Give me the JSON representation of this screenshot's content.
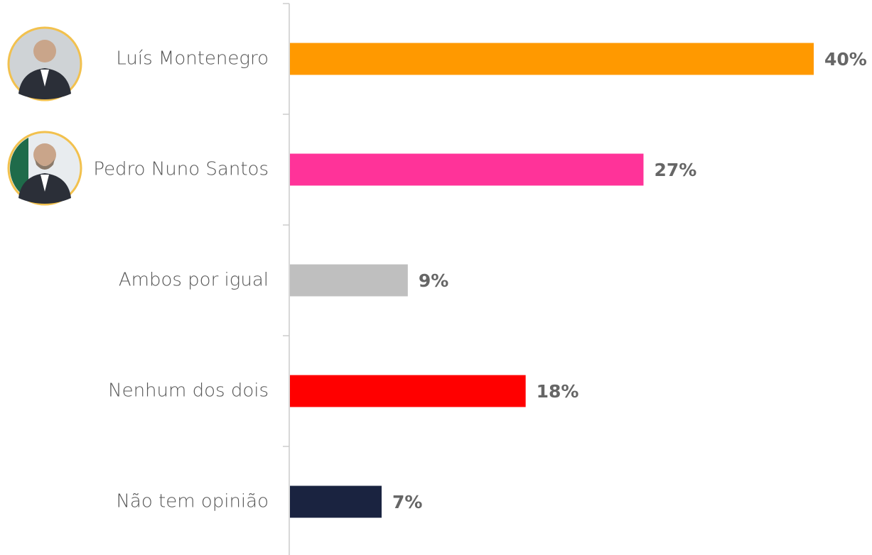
{
  "chart_data": {
    "type": "bar",
    "orientation": "horizontal",
    "categories": [
      "Luís Montenegro",
      "Pedro Nuno Santos",
      "Ambos por igual",
      "Nenhum dos dois",
      "Não tem opinião"
    ],
    "values": [
      40,
      27,
      9,
      18,
      7
    ],
    "value_labels": [
      "40%",
      "27%",
      "9%",
      "18%",
      "7%"
    ],
    "colors": [
      "#ff9900",
      "#ff3399",
      "#bfbfbf",
      "#ff0000",
      "#1a2340"
    ]
  }
}
